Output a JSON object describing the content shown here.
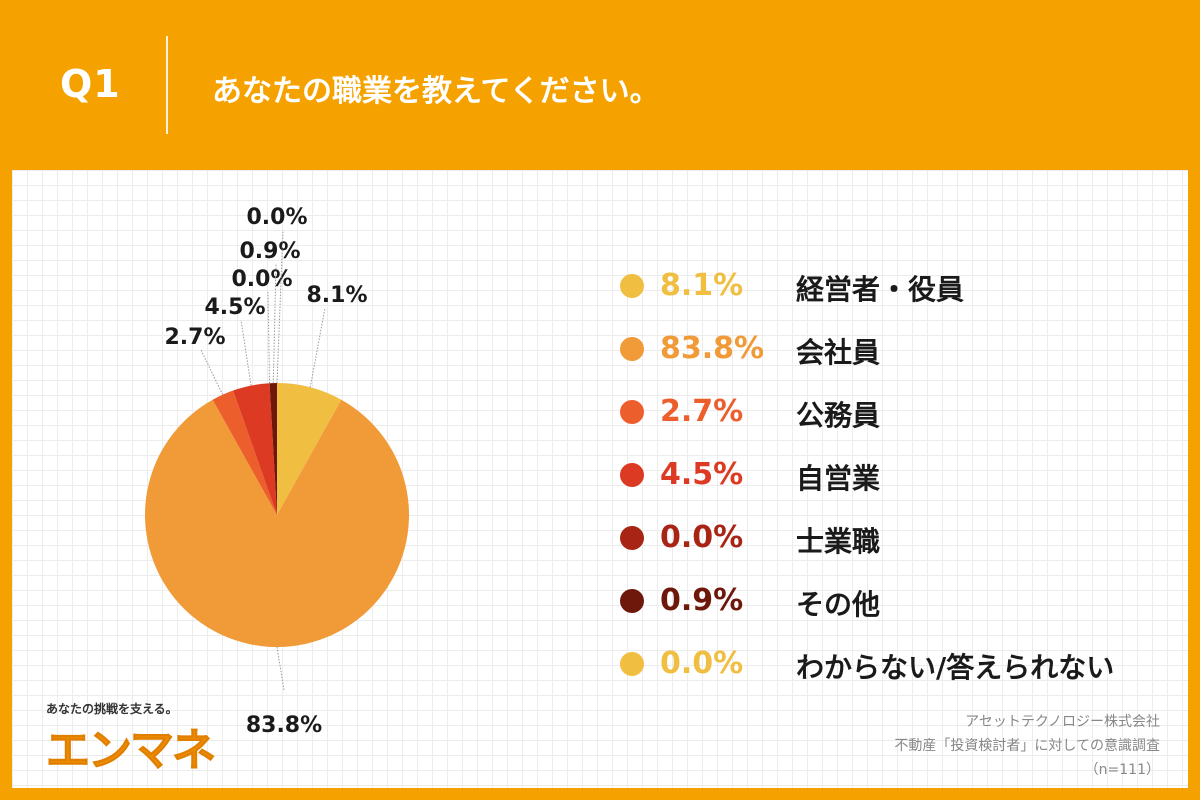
{
  "header": {
    "question_number": "Q1",
    "question": "あなたの職業を教えてください。"
  },
  "chart_data": {
    "type": "pie",
    "categories": [
      "経営者・役員",
      "会社員",
      "公務員",
      "自営業",
      "士業職",
      "その他",
      "わからない/答えられない"
    ],
    "values": [
      8.1,
      83.8,
      2.7,
      4.5,
      0.0,
      0.9,
      0.0
    ],
    "value_labels": [
      "8.1%",
      "83.8%",
      "2.7%",
      "4.5%",
      "0.0%",
      "0.9%",
      "0.0%"
    ],
    "colors": [
      "#F0BE40",
      "#F09A38",
      "#EC5E2C",
      "#DC3A22",
      "#A82516",
      "#6E180C",
      "#F0BE40"
    ],
    "legend_placement": "right"
  },
  "legend": [
    {
      "pct": "8.1%",
      "label": "経営者・役員",
      "color": "#F0BE40"
    },
    {
      "pct": "83.8%",
      "label": "会社員",
      "color": "#F09A38"
    },
    {
      "pct": "2.7%",
      "label": "公務員",
      "color": "#EC5E2C"
    },
    {
      "pct": "4.5%",
      "label": "自営業",
      "color": "#DC3A22"
    },
    {
      "pct": "0.0%",
      "label": "士業職",
      "color": "#A82516"
    },
    {
      "pct": "0.9%",
      "label": "その他",
      "color": "#6E180C"
    },
    {
      "pct": "0.0%",
      "label": "わからない/答えられない",
      "color": "#F0BE40"
    }
  ],
  "brand": {
    "tagline": "あなたの挑戦を支える。",
    "logo_text": "エンマネ"
  },
  "source": {
    "company": "アセットテクノロジー株式会社",
    "survey": "不動産「投資検討者」に対しての意識調査",
    "sample": "（n=111）"
  }
}
